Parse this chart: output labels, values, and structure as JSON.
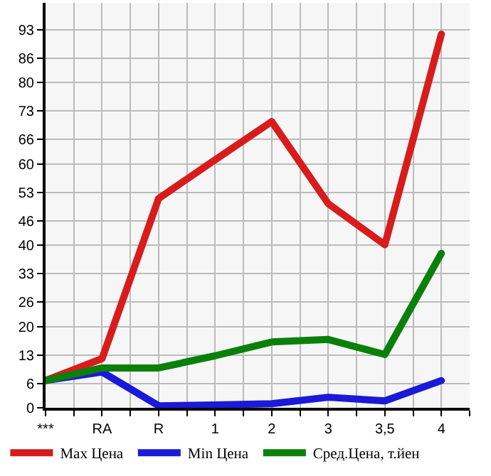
{
  "chart_data": {
    "type": "line",
    "categories": [
      "***",
      "RA",
      "R",
      "1",
      "2",
      "3",
      "3,5",
      "4"
    ],
    "series": [
      {
        "name": "Max Цена",
        "color": "#d81c1c",
        "values": [
          6.7,
          12.1,
          51.5,
          61,
          70.4,
          50.2,
          40.1,
          91.9
        ]
      },
      {
        "name": "Min Цена",
        "color": "#1a1ad8",
        "values": [
          6.7,
          8.8,
          0.5,
          0.7,
          1,
          2.6,
          1.7,
          6.7
        ]
      },
      {
        "name": "Сред.Цена, т.йен",
        "color": "#0a800a",
        "values": [
          6.7,
          9.8,
          9.8,
          12.8,
          16.2,
          16.8,
          13.1,
          38
        ]
      }
    ],
    "ylim": [
      0,
      99.6
    ],
    "yticks": [
      0,
      6,
      13,
      20,
      26,
      33,
      40,
      46,
      53,
      60,
      66,
      73,
      80,
      86,
      93
    ],
    "grid": true,
    "legend": "bottom",
    "marker": "none",
    "line_style": "solid"
  }
}
